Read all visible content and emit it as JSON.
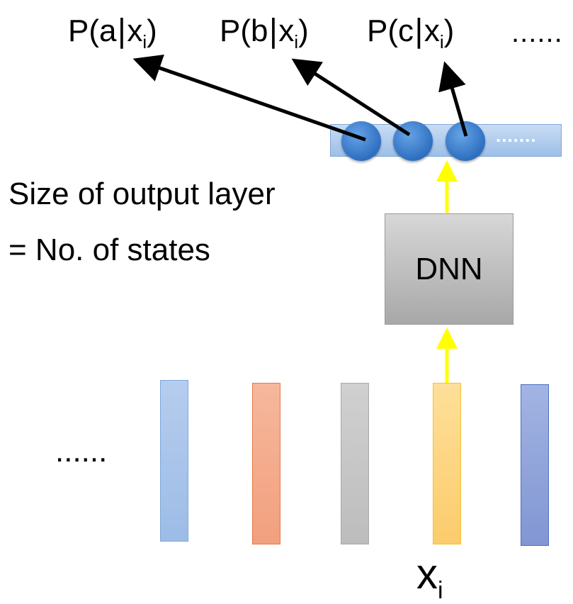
{
  "outputs": [
    {
      "pre": "P(a",
      "bar": "|",
      "x": "x",
      "sub": "i",
      "post": ")"
    },
    {
      "pre": "P(b",
      "bar": "|",
      "x": "x",
      "sub": "i",
      "post": ")"
    },
    {
      "pre": "P(c",
      "bar": "|",
      "x": "x",
      "sub": "i",
      "post": ")"
    }
  ],
  "top_ellipsis": "......",
  "caption_line1": "Size of output layer",
  "caption_line2": "= No. of states",
  "dnn_label": "DNN",
  "output_layer_ellipsis": ".......",
  "frames_ellipsis": "......",
  "input_label": {
    "x": "x",
    "sub": "i"
  },
  "colors": {
    "arrow_black": "#000000",
    "arrow_yellow": "#ffff00",
    "neuron": "#2e6fc0",
    "frame_blue_light": "#a7c4ea",
    "frame_orange": "#f4a98a",
    "frame_gray": "#c6c6c6",
    "frame_yellow": "#fdd683",
    "frame_blue_dark": "#8da2d9"
  }
}
